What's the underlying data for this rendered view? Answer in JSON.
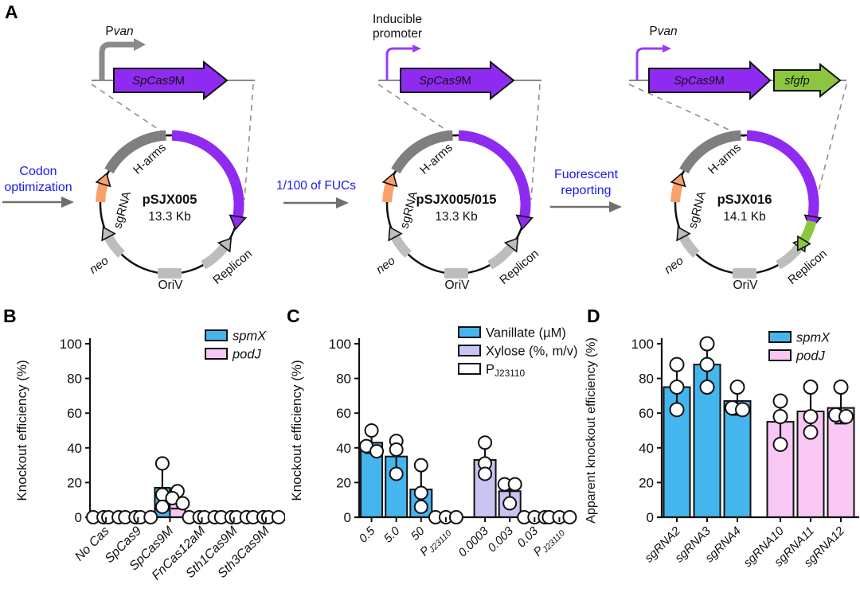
{
  "figure": {
    "panels": {
      "a": "A",
      "b": "B",
      "c": "C",
      "d": "D"
    }
  },
  "colors": {
    "blue": "#45b5ee",
    "pink": "#f8c7f3",
    "lavender": "#c8c5f2",
    "purple": "#8f2bf0",
    "green": "#8cc63e",
    "orange": "#f9a06b",
    "gray_dark": "#8a8a8a",
    "gray_light": "#bdbdbd",
    "blue_text": "#1a1aee",
    "white": "#ffffff"
  },
  "panel_a": {
    "transitions": [
      {
        "label": "Codon optimization"
      },
      {
        "label": "1/100 of FUCs"
      },
      {
        "label": "Fuorescent reporting"
      }
    ],
    "plasmids": [
      {
        "name": "pSJX005",
        "size": "13.3 Kb",
        "promoter": {
          "style": "thick-gray",
          "label_pre": "P",
          "label_it": "van"
        },
        "genes": [
          {
            "it": "SpCas9",
            "reg": "M",
            "color": "purple"
          }
        ],
        "green_arc": false,
        "ring": {
          "sgrna": "sgRNA",
          "harms": "H-arms",
          "neo": "neo",
          "oriv": "OriV",
          "replicon": "Replicon"
        }
      },
      {
        "name": "pSJX005/015",
        "size": "13.3 Kb",
        "promoter": {
          "style": "thin-purple",
          "label_lines": [
            "Inducible",
            "promoter"
          ]
        },
        "genes": [
          {
            "it": "SpCas9",
            "reg": "M",
            "color": "purple"
          }
        ],
        "green_arc": false,
        "ring": {
          "sgrna": "sgRNA",
          "harms": "H-arms",
          "neo": "neo",
          "oriv": "OriV",
          "replicon": "Replicon"
        }
      },
      {
        "name": "pSJX016",
        "size": "14.1 Kb",
        "promoter": {
          "style": "thin-purple",
          "label_pre": "P",
          "label_it": "van"
        },
        "genes": [
          {
            "it": "SpCas9",
            "reg": "M",
            "color": "purple"
          },
          {
            "it": "sfgfp",
            "reg": "",
            "color": "green"
          }
        ],
        "green_arc": true,
        "ring": {
          "sgrna": "sgRNA",
          "harms": "H-arms",
          "neo": "neo",
          "oriv": "OriV",
          "replicon": "Replicon"
        }
      }
    ]
  },
  "chart_data": [
    {
      "id": "B",
      "type": "bar",
      "ylabel": "Knockout efficiency (%)",
      "ylim": [
        0,
        100
      ],
      "yticks": [
        0,
        20,
        40,
        60,
        80,
        100
      ],
      "grid": false,
      "legend_position": "top-right",
      "categories": [
        "No Cas",
        "SpCas9",
        "SpCas9M",
        "FnCas12aM",
        "Sth1Cas9M",
        "Sth3Cas9M"
      ],
      "series": [
        {
          "name": "spmX",
          "color": "#45b5ee",
          "values": [
            0,
            0,
            17,
            0,
            0,
            0
          ],
          "errors": [
            null,
            null,
            [
              4,
              31
            ],
            null,
            null,
            null
          ],
          "points": [
            [
              0,
              0
            ],
            [
              0,
              0
            ],
            [
              31,
              13,
              6
            ],
            [
              0,
              0
            ],
            [
              0,
              0
            ],
            [
              0,
              0
            ]
          ]
        },
        {
          "name": "podJ",
          "color": "#f8c7f3",
          "values": [
            0,
            0,
            9,
            0,
            0,
            0
          ],
          "errors": [
            null,
            null,
            [
              5,
              15
            ],
            null,
            null,
            null
          ],
          "points": [
            [
              0,
              0
            ],
            [
              0,
              0
            ],
            [
              15,
              11,
              8
            ],
            [
              0,
              0
            ],
            [
              0,
              0
            ],
            [
              0,
              0
            ]
          ]
        }
      ],
      "legend": [
        {
          "label": "spmX",
          "italic": true,
          "color": "#45b5ee"
        },
        {
          "label": "podJ",
          "italic": true,
          "color": "#f8c7f3"
        }
      ]
    },
    {
      "id": "C",
      "type": "bar",
      "ylabel": "Knockout efficiency (%)",
      "ylim": [
        0,
        100
      ],
      "yticks": [
        0,
        20,
        40,
        60,
        80,
        100
      ],
      "grid": false,
      "legend_position": "top-right",
      "slots": [
        {
          "label": "0.5",
          "value": 43,
          "err": [
            37,
            50
          ],
          "points": [
            50,
            41,
            38
          ],
          "color_key": "vanillate"
        },
        {
          "label": "5.0",
          "value": 35,
          "err": [
            25,
            45
          ],
          "points": [
            44,
            39,
            25
          ],
          "color_key": "vanillate"
        },
        {
          "label": "50",
          "value": 16,
          "err": [
            4,
            30
          ],
          "points": [
            30,
            14,
            6
          ],
          "color_key": "vanillate"
        },
        {
          "label": {
            "main": "P",
            "sub": "J23110"
          },
          "value": 0,
          "err": null,
          "points": [
            0,
            0,
            0
          ],
          "color_key": "control"
        },
        {
          "label": "0.0003",
          "value": 33,
          "err": [
            23,
            43
          ],
          "points": [
            43,
            31,
            25
          ],
          "color_key": "xylose",
          "new_group": true
        },
        {
          "label": "0.003",
          "value": 15,
          "err": [
            7,
            21
          ],
          "points": [
            19,
            19,
            8
          ],
          "color_key": "xylose"
        },
        {
          "label": "0.03",
          "value": 0,
          "err": null,
          "points": [
            0,
            0,
            0
          ],
          "color_key": "control"
        },
        {
          "label": {
            "main": "P",
            "sub": "J23110"
          },
          "value": 0,
          "err": null,
          "points": [
            0,
            0,
            0
          ],
          "color_key": "control"
        }
      ],
      "legend": [
        {
          "label": "Vanillate (µM)",
          "italic": false,
          "color": "#45b5ee"
        },
        {
          "label": "Xylose (%, m/v)",
          "italic": false,
          "color": "#c8c5f2"
        },
        {
          "label": {
            "main": "P",
            "sub": "J23110"
          },
          "italic": false,
          "color": "#ffffff"
        }
      ]
    },
    {
      "id": "D",
      "type": "bar",
      "ylabel": "Apparent knockout efficiency (%)",
      "ylim": [
        0,
        100
      ],
      "yticks": [
        0,
        20,
        40,
        60,
        80,
        100
      ],
      "grid": false,
      "legend_position": "top-right",
      "slots": [
        {
          "label": "sgRNA2",
          "value": 75,
          "err": [
            62,
            88
          ],
          "points": [
            88,
            75,
            62
          ],
          "color_key": "spmX"
        },
        {
          "label": "sgRNA3",
          "value": 88,
          "err": [
            75,
            100
          ],
          "points": [
            100,
            88,
            75
          ],
          "color_key": "spmX"
        },
        {
          "label": "sgRNA4",
          "value": 67,
          "err": [
            59,
            75
          ],
          "points": [
            75,
            63,
            62
          ],
          "color_key": "spmX"
        },
        {
          "label": "sgRNA10",
          "value": 55,
          "err": [
            42,
            67
          ],
          "points": [
            67,
            58,
            42
          ],
          "color_key": "podJ",
          "new_group": true
        },
        {
          "label": "sgRNA11",
          "value": 61,
          "err": [
            48,
            75
          ],
          "points": [
            75,
            58,
            49
          ],
          "color_key": "podJ"
        },
        {
          "label": "sgRNA12",
          "value": 63,
          "err": [
            54,
            76
          ],
          "points": [
            75,
            59,
            58
          ],
          "color_key": "podJ"
        }
      ],
      "legend": [
        {
          "label": "spmX",
          "italic": true,
          "color": "#45b5ee"
        },
        {
          "label": "podJ",
          "italic": true,
          "color": "#f8c7f3"
        }
      ]
    }
  ]
}
